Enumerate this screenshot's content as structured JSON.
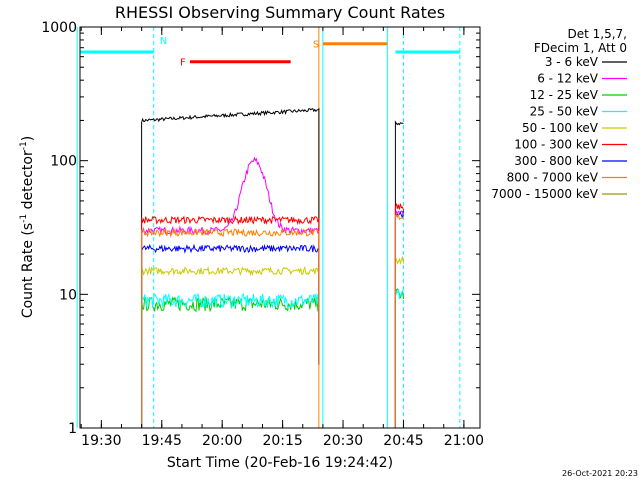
{
  "chart_data": {
    "type": "line",
    "title": "RHESSI Observing Summary Count Rates",
    "xlabel": "Start Time (20-Feb-16 19:24:42)",
    "ylabel_main": "Count Rate (s",
    "ylabel_sup1": "-1",
    "ylabel_mid": " detector",
    "ylabel_sup2": "-1",
    "ylabel_end": ")",
    "yscale": "log",
    "ylim": [
      1,
      1000
    ],
    "xlim": [
      "19:24",
      "21:04"
    ],
    "x_ticks": [
      "19:30",
      "19:45",
      "20:00",
      "20:15",
      "20:30",
      "20:45",
      "21:00"
    ],
    "y_ticks": [
      "1",
      "10",
      "100",
      "1000"
    ],
    "footer_date": "26-Oct-2021 20:23",
    "legend_header": [
      "Det 1,5,7,",
      "FDecim 1, Att 0"
    ],
    "series": [
      {
        "name": "3 - 6 keV",
        "color": "#000000",
        "plateau": 240,
        "peak_time": null,
        "peak": null,
        "segments": [
          [
            "19:40",
            "20:24"
          ],
          [
            "20:43",
            "20:45"
          ]
        ],
        "late": 190
      },
      {
        "name": "6 - 12 keV",
        "color": "#ff00ff",
        "plateau": 30,
        "peak_time": "20:08",
        "peak": 100,
        "segments": [
          [
            "19:40",
            "20:24"
          ],
          [
            "20:43",
            "20:45"
          ]
        ],
        "late": 40
      },
      {
        "name": "12 - 25 keV",
        "color": "#00cc00",
        "plateau": 8.5,
        "peak_time": null,
        "peak": null,
        "segments": [
          [
            "19:40",
            "20:24"
          ],
          [
            "20:43",
            "20:45"
          ]
        ],
        "late": 10
      },
      {
        "name": "25 - 50 keV",
        "color": "#00ffff",
        "plateau": 9,
        "peak_time": null,
        "peak": null,
        "segments": [
          [
            "19:40",
            "20:24"
          ],
          [
            "20:43",
            "20:45"
          ]
        ],
        "late": 10
      },
      {
        "name": "50 - 100 keV",
        "color": "#cccc00",
        "plateau": 15,
        "peak_time": null,
        "peak": null,
        "segments": [
          [
            "19:40",
            "20:24"
          ],
          [
            "20:43",
            "20:45"
          ]
        ],
        "late": 18
      },
      {
        "name": "100 - 300 keV",
        "color": "#ff0000",
        "plateau": 36,
        "peak_time": null,
        "peak": null,
        "segments": [
          [
            "19:40",
            "20:24"
          ],
          [
            "20:43",
            "20:45"
          ]
        ],
        "late": 45
      },
      {
        "name": "300 - 800 keV",
        "color": "#0000ff",
        "plateau": 22,
        "peak_time": null,
        "peak": null,
        "segments": [
          [
            "19:40",
            "20:24"
          ],
          [
            "20:43",
            "20:45"
          ]
        ],
        "late": 40
      },
      {
        "name": "800 - 7000 keV",
        "color": "#ff8000",
        "plateau": 29,
        "peak_time": null,
        "peak": null,
        "segments": [
          [
            "19:40",
            "20:24"
          ],
          [
            "20:43",
            "20:45"
          ]
        ],
        "late": 38
      },
      {
        "name": "7000 - 15000 keV",
        "color": "#999900",
        "plateau": null,
        "peak_time": null,
        "peak": null,
        "segments": [],
        "late": null
      }
    ],
    "flag_bars": [
      {
        "label": "N",
        "color": "#00ffff",
        "level": 650,
        "ranges": [
          [
            "19:24",
            "19:43"
          ],
          [
            "20:43",
            "20:59"
          ]
        ]
      },
      {
        "label": "F",
        "color": "#ff0000",
        "level": 550,
        "ranges": [
          [
            "19:52",
            "20:17"
          ]
        ]
      },
      {
        "label": "S",
        "color": "#ff8000",
        "level": 750,
        "ranges": [
          [
            "20:25",
            "20:41"
          ]
        ]
      }
    ],
    "flag_lines": [
      {
        "time": "19:24",
        "color": "#00ffff",
        "style": "solid"
      },
      {
        "time": "19:43",
        "color": "#00ffff",
        "style": "dashed"
      },
      {
        "time": "20:24",
        "color": "#ff8000",
        "style": "solid"
      },
      {
        "time": "20:25",
        "color": "#00ffff",
        "style": "solid"
      },
      {
        "time": "20:41",
        "color": "#00ffff",
        "style": "solid"
      },
      {
        "time": "20:45",
        "color": "#00ffff",
        "style": "dashed"
      },
      {
        "time": "20:59",
        "color": "#00ffff",
        "style": "dashed"
      }
    ]
  }
}
